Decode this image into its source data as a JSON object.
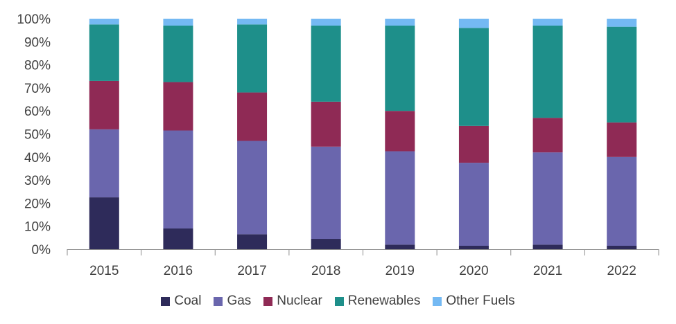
{
  "chart_data": {
    "type": "bar",
    "stacked": true,
    "percent": true,
    "title": "",
    "xlabel": "",
    "ylabel": "",
    "ylim": [
      0,
      100
    ],
    "yticks": [
      "0%",
      "10%",
      "20%",
      "30%",
      "40%",
      "50%",
      "60%",
      "70%",
      "80%",
      "90%",
      "100%"
    ],
    "grid": false,
    "legend_position": "bottom",
    "categories": [
      "2015",
      "2016",
      "2017",
      "2018",
      "2019",
      "2020",
      "2021",
      "2022"
    ],
    "series": [
      {
        "name": "Coal",
        "color": "#2e2b5a",
        "values": [
          22.5,
          9,
          6.5,
          4.5,
          2,
          1.5,
          2,
          1.5
        ]
      },
      {
        "name": "Gas",
        "color": "#6a66ad",
        "values": [
          29.5,
          42.5,
          40.5,
          40,
          40.5,
          36,
          40,
          38.5
        ]
      },
      {
        "name": "Nuclear",
        "color": "#8f2a55",
        "values": [
          21,
          21,
          21,
          19.5,
          17.5,
          16,
          15,
          15
        ]
      },
      {
        "name": "Renewables",
        "color": "#1e8f8a",
        "values": [
          24.5,
          24.5,
          29.5,
          33,
          37,
          42.5,
          40,
          41.5
        ]
      },
      {
        "name": "Other Fuels",
        "color": "#74b9f3",
        "values": [
          2.5,
          3,
          2.5,
          3,
          3,
          4,
          3,
          3.5
        ]
      }
    ]
  }
}
